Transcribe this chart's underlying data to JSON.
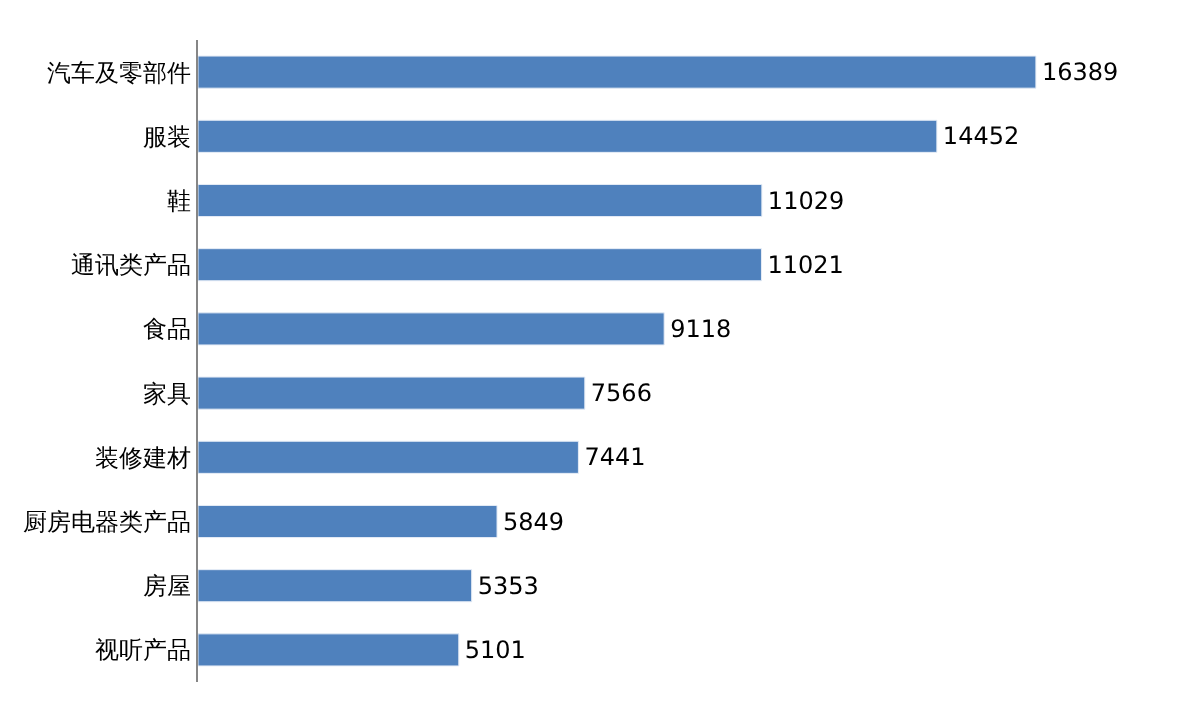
{
  "chart_data": {
    "type": "bar",
    "orientation": "horizontal",
    "categories": [
      "汽车及零部件",
      "服装",
      "鞋",
      "通讯类产品",
      "食品",
      "家具",
      "装修建材",
      "厨房电器类产品",
      "房屋",
      "视听产品"
    ],
    "values": [
      16389,
      14452,
      11029,
      11021,
      9118,
      7566,
      7441,
      5849,
      5353,
      5101
    ],
    "color": "#4f81bd",
    "data_labels": true
  }
}
